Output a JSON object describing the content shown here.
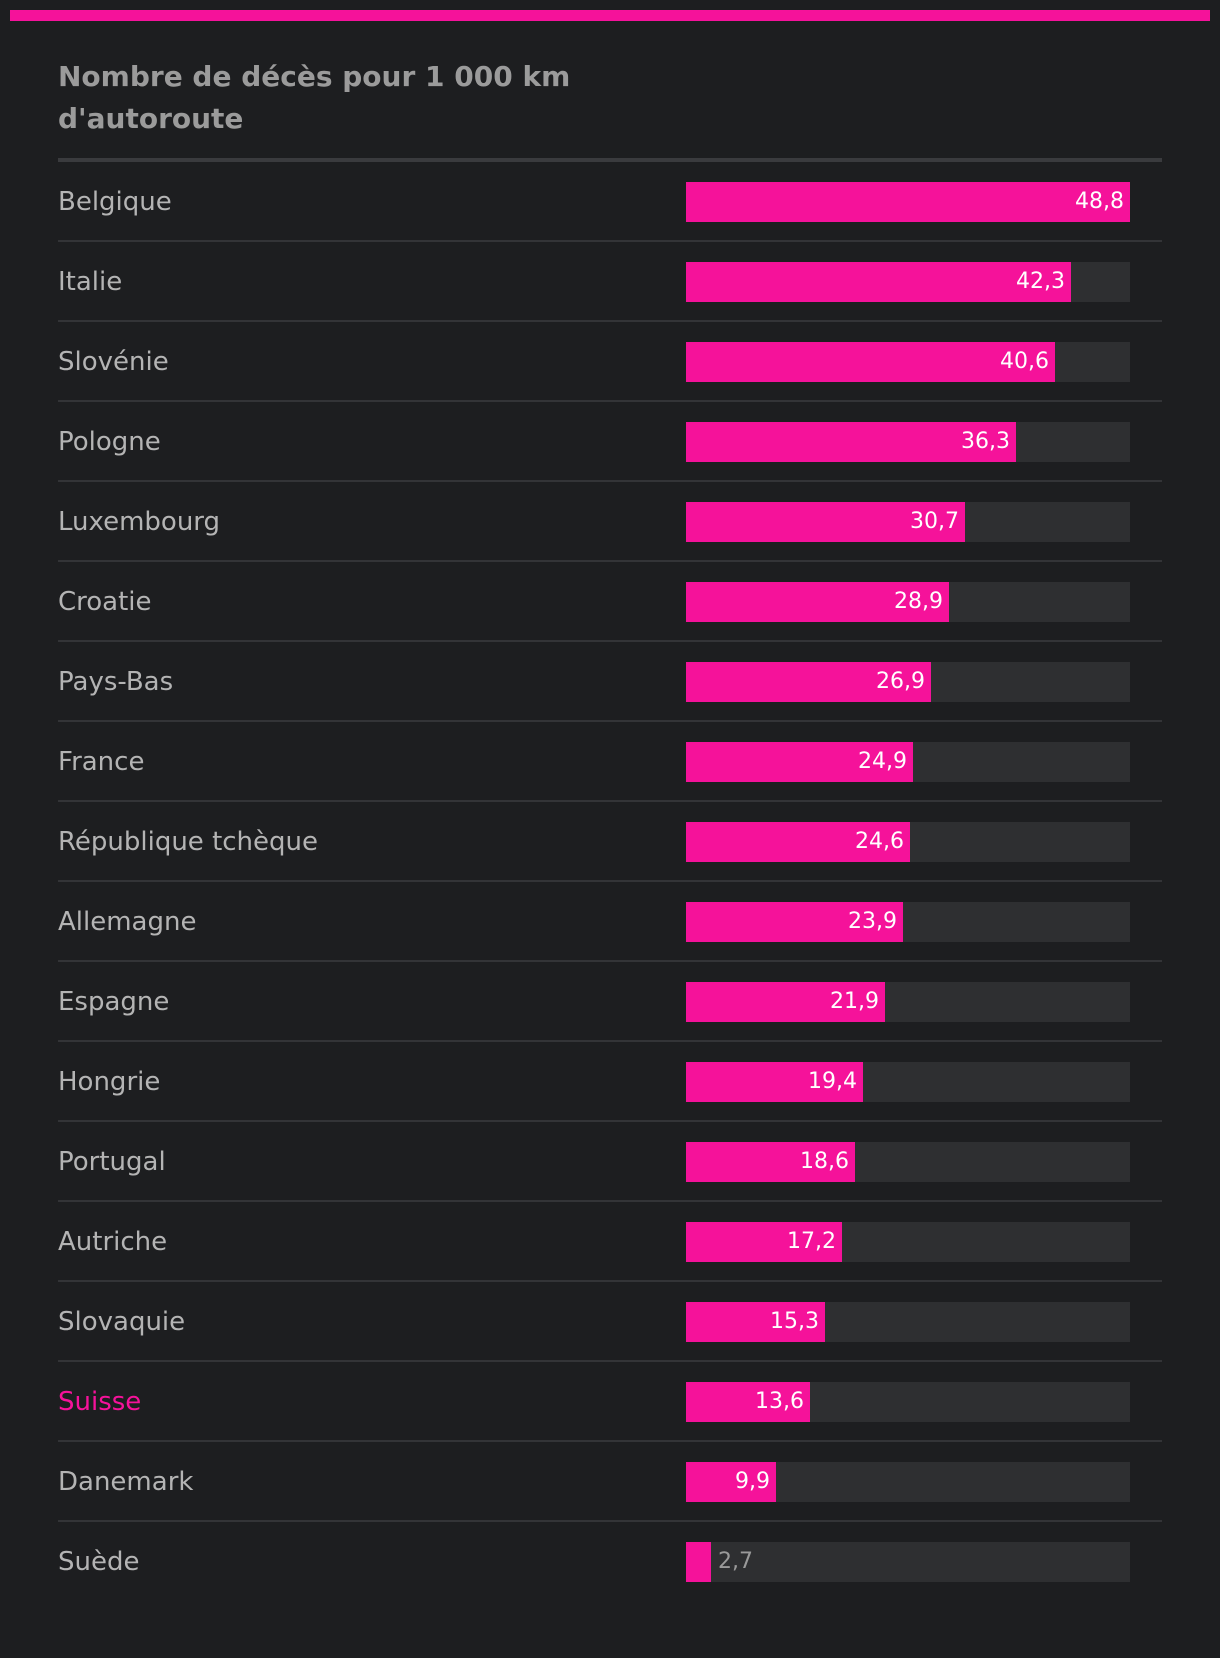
{
  "colors": {
    "accent": "#f5129a",
    "background": "#1d1e20",
    "track": "#2e2f31"
  },
  "chart_data": {
    "type": "bar",
    "orientation": "horizontal",
    "title": "Nombre de décès pour 1 000 km d'autoroute",
    "xlim": [
      0,
      48.8
    ],
    "grid": false,
    "highlight": "Suisse",
    "categories": [
      "Belgique",
      "Italie",
      "Slovénie",
      "Pologne",
      "Luxembourg",
      "Croatie",
      "Pays-Bas",
      "France",
      "République tchèque",
      "Allemagne",
      "Espagne",
      "Hongrie",
      "Portugal",
      "Autriche",
      "Slovaquie",
      "Suisse",
      "Danemark",
      "Suède"
    ],
    "values": [
      48.8,
      42.3,
      40.6,
      36.3,
      30.7,
      28.9,
      26.9,
      24.9,
      24.6,
      23.9,
      21.9,
      19.4,
      18.6,
      17.2,
      15.3,
      13.6,
      9.9,
      2.7
    ],
    "value_labels": [
      "48,8",
      "42,3",
      "40,6",
      "36,3",
      "30,7",
      "28,9",
      "26,9",
      "24,9",
      "24,6",
      "23,9",
      "21,9",
      "19,4",
      "18,6",
      "17,2",
      "15,3",
      "13,6",
      "9,9",
      "2,7"
    ]
  }
}
